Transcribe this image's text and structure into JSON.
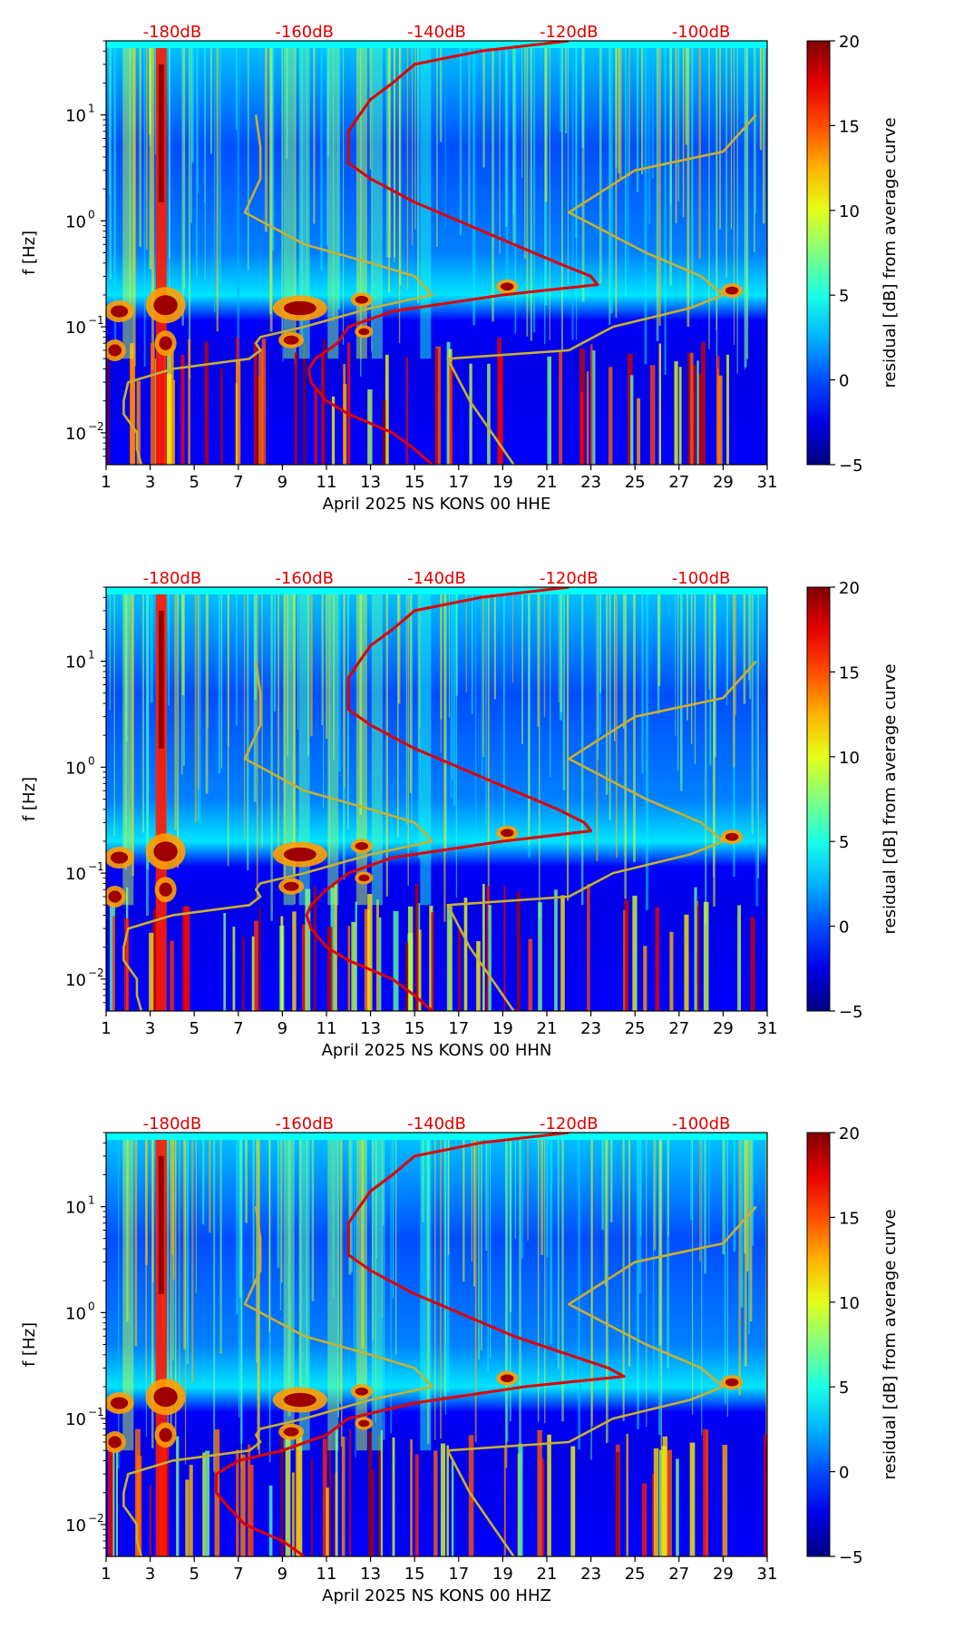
{
  "chart_data": [
    {
      "type": "heatmap",
      "title": "",
      "xlabel": "April 2025 NS KONS 00 HHE",
      "ylabel": "f [Hz]",
      "x_ticks": [
        "1",
        "3",
        "5",
        "7",
        "9",
        "11",
        "13",
        "15",
        "17",
        "19",
        "21",
        "23",
        "25",
        "27",
        "29",
        "31"
      ],
      "y_ticks": [
        {
          "base": "10",
          "exp": "1"
        },
        {
          "base": "10",
          "exp": "0"
        },
        {
          "base": "10",
          "exp": "−1"
        },
        {
          "base": "10",
          "exp": "−2"
        }
      ],
      "xlim": [
        1,
        31
      ],
      "ylim_hz": [
        0.005,
        50
      ],
      "db_labels": [
        "-180dB",
        "-160dB",
        "-140dB",
        "-120dB",
        "-100dB"
      ],
      "db_positions_day": [
        4,
        10,
        16,
        22,
        28
      ],
      "colorbar": {
        "label": "residual [dB] from average curve",
        "ticks": [
          "−5",
          "0",
          "5",
          "10",
          "15",
          "20"
        ],
        "range": [
          -5,
          20
        ]
      },
      "series": [
        {
          "name": "average PSD curve",
          "color": "#e00000",
          "freq": [
            50,
            40,
            30,
            20,
            14,
            10,
            7,
            5,
            3.5,
            2.5,
            1.5,
            1.0,
            0.6,
            0.4,
            0.3,
            0.25,
            0.2,
            0.14,
            0.1,
            0.07,
            0.05,
            0.04,
            0.03,
            0.02,
            0.015,
            0.01,
            0.007,
            0.005
          ],
          "day": [
            22,
            18,
            15,
            14,
            13,
            12.5,
            12,
            12,
            12,
            13,
            15,
            17,
            19.5,
            21.5,
            23,
            23.3,
            19,
            14,
            12,
            11.5,
            10.5,
            10.2,
            10.3,
            11,
            12,
            14,
            15,
            15.8
          ]
        },
        {
          "name": "noise model lower",
          "color": "#c8b030",
          "freq": [
            10,
            5,
            2.5,
            1.2,
            0.6,
            0.4,
            0.3,
            0.2,
            0.15,
            0.1,
            0.08,
            0.07,
            0.06,
            0.05,
            0.04,
            0.03,
            0.02,
            0.015,
            0.01,
            0.007,
            0.005
          ],
          "day": [
            7.8,
            8,
            8,
            7.3,
            10,
            13,
            15,
            15.8,
            13,
            10,
            8,
            7.8,
            8,
            7.5,
            4,
            2,
            1.8,
            1.8,
            2.4,
            2.4,
            2.6
          ]
        },
        {
          "name": "noise model upper",
          "color": "#c8b030",
          "freq": [
            10,
            4.5,
            3,
            1.2,
            0.5,
            0.3,
            0.2,
            0.15,
            0.1,
            0.06,
            0.05,
            0.02,
            0.01,
            0.005
          ],
          "day": [
            30.5,
            29,
            25,
            22,
            25.5,
            28,
            29,
            27.5,
            24,
            22,
            16.5,
            17.5,
            18.5,
            19.5
          ]
        }
      ]
    },
    {
      "type": "heatmap",
      "title": "",
      "xlabel": "April 2025 NS KONS 00 HHN",
      "ylabel": "f [Hz]",
      "x_ticks": [
        "1",
        "3",
        "5",
        "7",
        "9",
        "11",
        "13",
        "15",
        "17",
        "19",
        "21",
        "23",
        "25",
        "27",
        "29",
        "31"
      ],
      "y_ticks": [
        {
          "base": "10",
          "exp": "1"
        },
        {
          "base": "10",
          "exp": "0"
        },
        {
          "base": "10",
          "exp": "−1"
        },
        {
          "base": "10",
          "exp": "−2"
        }
      ],
      "xlim": [
        1,
        31
      ],
      "ylim_hz": [
        0.005,
        50
      ],
      "db_labels": [
        "-180dB",
        "-160dB",
        "-140dB",
        "-120dB",
        "-100dB"
      ],
      "db_positions_day": [
        4,
        10,
        16,
        22,
        28
      ],
      "colorbar": {
        "label": "residual [dB] from average curve",
        "ticks": [
          "−5",
          "0",
          "5",
          "10",
          "15",
          "20"
        ],
        "range": [
          -5,
          20
        ]
      },
      "series": [
        {
          "name": "average PSD curve",
          "color": "#e00000",
          "freq": [
            50,
            40,
            30,
            20,
            14,
            10,
            7,
            5,
            3.5,
            2.5,
            1.5,
            1.0,
            0.6,
            0.4,
            0.3,
            0.25,
            0.2,
            0.14,
            0.1,
            0.07,
            0.05,
            0.04,
            0.03,
            0.02,
            0.015,
            0.01,
            0.007,
            0.005
          ],
          "day": [
            22,
            18,
            15,
            14,
            13,
            12.5,
            12,
            12,
            12,
            13,
            15,
            17,
            19.5,
            21.5,
            22.7,
            23,
            19,
            14,
            12,
            11,
            10.3,
            10.1,
            10.3,
            11,
            12,
            14,
            15,
            15.8
          ]
        },
        {
          "name": "noise model lower",
          "color": "#c8b030",
          "freq": [
            10,
            5,
            2.5,
            1.2,
            0.6,
            0.4,
            0.3,
            0.2,
            0.15,
            0.1,
            0.08,
            0.07,
            0.06,
            0.05,
            0.04,
            0.03,
            0.02,
            0.015,
            0.01,
            0.007,
            0.005
          ],
          "day": [
            7.8,
            8,
            8,
            7.3,
            10,
            13,
            15,
            15.8,
            13,
            10,
            8,
            7.8,
            8,
            7.5,
            4,
            2,
            1.8,
            1.8,
            2.4,
            2.4,
            2.6
          ]
        },
        {
          "name": "noise model upper",
          "color": "#c8b030",
          "freq": [
            10,
            4.5,
            3,
            1.2,
            0.5,
            0.3,
            0.2,
            0.15,
            0.1,
            0.06,
            0.05,
            0.02,
            0.01,
            0.005
          ],
          "day": [
            30.5,
            29,
            25,
            22,
            25.5,
            28,
            29,
            27.5,
            24,
            22,
            16.5,
            17.5,
            18.5,
            19.5
          ]
        }
      ]
    },
    {
      "type": "heatmap",
      "title": "",
      "xlabel": "April 2025 NS KONS 00 HHZ",
      "ylabel": "f [Hz]",
      "x_ticks": [
        "1",
        "3",
        "5",
        "7",
        "9",
        "11",
        "13",
        "15",
        "17",
        "19",
        "21",
        "23",
        "25",
        "27",
        "29",
        "31"
      ],
      "y_ticks": [
        {
          "base": "10",
          "exp": "1"
        },
        {
          "base": "10",
          "exp": "0"
        },
        {
          "base": "10",
          "exp": "−1"
        },
        {
          "base": "10",
          "exp": "−2"
        }
      ],
      "xlim": [
        1,
        31
      ],
      "ylim_hz": [
        0.005,
        50
      ],
      "db_labels": [
        "-180dB",
        "-160dB",
        "-140dB",
        "-120dB",
        "-100dB"
      ],
      "db_positions_day": [
        4,
        10,
        16,
        22,
        28
      ],
      "colorbar": {
        "label": "residual [dB] from average curve",
        "ticks": [
          "−5",
          "0",
          "5",
          "10",
          "15",
          "20"
        ],
        "range": [
          -5,
          20
        ]
      },
      "series": [
        {
          "name": "average PSD curve",
          "color": "#e00000",
          "freq": [
            50,
            40,
            30,
            20,
            14,
            10,
            7,
            5,
            3.5,
            2.5,
            1.5,
            1.0,
            0.6,
            0.4,
            0.3,
            0.25,
            0.2,
            0.14,
            0.1,
            0.07,
            0.05,
            0.04,
            0.03,
            0.02,
            0.015,
            0.01,
            0.007,
            0.005
          ],
          "day": [
            22,
            18,
            15,
            14,
            13,
            12.5,
            12,
            12,
            12,
            13,
            15,
            17,
            19.5,
            22,
            23.8,
            24.5,
            20,
            15,
            12,
            11,
            9,
            7,
            6,
            6,
            6.5,
            7.3,
            9,
            10
          ]
        },
        {
          "name": "noise model lower",
          "color": "#c8b030",
          "freq": [
            10,
            5,
            2.5,
            1.2,
            0.6,
            0.4,
            0.3,
            0.2,
            0.15,
            0.1,
            0.08,
            0.07,
            0.06,
            0.05,
            0.04,
            0.03,
            0.02,
            0.015,
            0.01,
            0.007,
            0.005
          ],
          "day": [
            7.8,
            8,
            8,
            7.3,
            10,
            13,
            15,
            15.8,
            13,
            10,
            8,
            7.8,
            8,
            7.5,
            4,
            2,
            1.8,
            1.8,
            2.4,
            2.4,
            2.6
          ]
        },
        {
          "name": "noise model upper",
          "color": "#c8b030",
          "freq": [
            10,
            4.5,
            3,
            1.2,
            0.5,
            0.3,
            0.2,
            0.15,
            0.1,
            0.06,
            0.05,
            0.02,
            0.01,
            0.005
          ],
          "day": [
            30.5,
            29,
            25,
            22,
            25.5,
            28,
            29,
            27.5,
            24,
            22,
            16.5,
            17.5,
            18.5,
            19.5
          ]
        }
      ]
    }
  ]
}
